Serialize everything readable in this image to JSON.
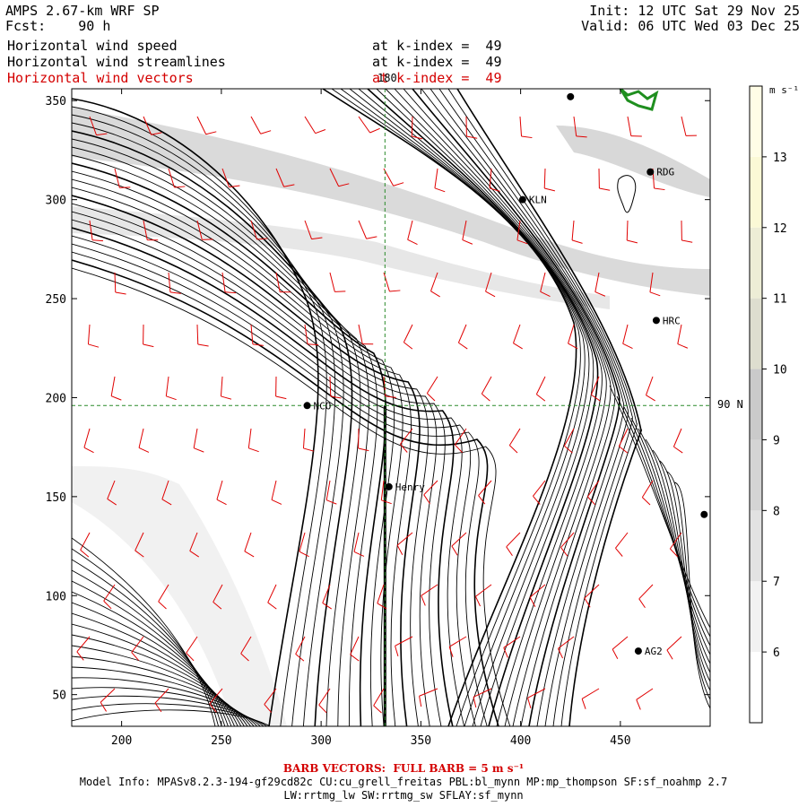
{
  "header": {
    "model_title": "AMPS 2.67-km WRF SP",
    "forecast_label": "Fcst:",
    "forecast_hours": "90 h",
    "init_time": "Init: 12 UTC Sat 29 Nov 25",
    "valid_time": "Valid: 06 UTC Wed 03 Dec 25",
    "fields": [
      {
        "name": "Horizontal wind speed",
        "level": "at k-index =  49",
        "color": "#000000"
      },
      {
        "name": "Horizontal wind streamlines",
        "level": "at k-index =  49",
        "color": "#000000"
      },
      {
        "name": "Horizontal wind vectors",
        "level": "at k-index =  49",
        "color": "#d40000"
      }
    ]
  },
  "map": {
    "x_ticks": [
      "200",
      "250",
      "300",
      "350",
      "400",
      "450"
    ],
    "x_tick_values": [
      200,
      250,
      300,
      350,
      400,
      450
    ],
    "y_ticks": [
      "50",
      "100",
      "150",
      "200",
      "250",
      "300",
      "350"
    ],
    "y_tick_values": [
      50,
      100,
      150,
      200,
      250,
      300,
      350
    ],
    "x_range": [
      175,
      495
    ],
    "y_range": [
      34,
      356
    ],
    "meridian_label": "180",
    "meridian_x": 332,
    "pole_label": "90 N",
    "pole_y": 196,
    "stations": [
      {
        "name": "NCO",
        "x": 293,
        "y": 196
      },
      {
        "name": "Henry",
        "x": 334,
        "y": 155
      },
      {
        "name": "KLN",
        "x": 401,
        "y": 300
      },
      {
        "name": "RDG",
        "x": 465,
        "y": 314
      },
      {
        "name": "HRC",
        "x": 468,
        "y": 239
      },
      {
        "name": "AG2",
        "x": 459,
        "y": 72
      },
      {
        "name": "",
        "x": 425,
        "y": 352
      },
      {
        "name": "",
        "x": 492,
        "y": 141
      }
    ],
    "colors": {
      "streamline": "#000000",
      "barb": "#e00000",
      "grid": "#2a8a2a",
      "coast": "#1f8f1f",
      "axis": "#000000"
    }
  },
  "colorbar": {
    "unit": "m s⁻¹",
    "levels": [
      "6",
      "7",
      "8",
      "9",
      "10",
      "11",
      "12",
      "13"
    ],
    "colors": [
      "#ffffff",
      "#f2f2f2",
      "#e2e2e2",
      "#d4d4d4",
      "#cacaca",
      "#dedecf",
      "#ededd6",
      "#fbf9d6",
      "#fffde6"
    ]
  },
  "footer": {
    "barb_note": "BARB VECTORS:  FULL BARB = 5 m s⁻¹",
    "model_info": "Model Info: MPASv8.2.3-194-gf29cd82c CU:cu_grell_freitas PBL:bl_mynn MP:mp_thompson SF:sf_noahmp 2.7",
    "physics_info": "LW:rrtmg_lw SW:rrtmg_sw SFLAY:sf_mynn"
  }
}
